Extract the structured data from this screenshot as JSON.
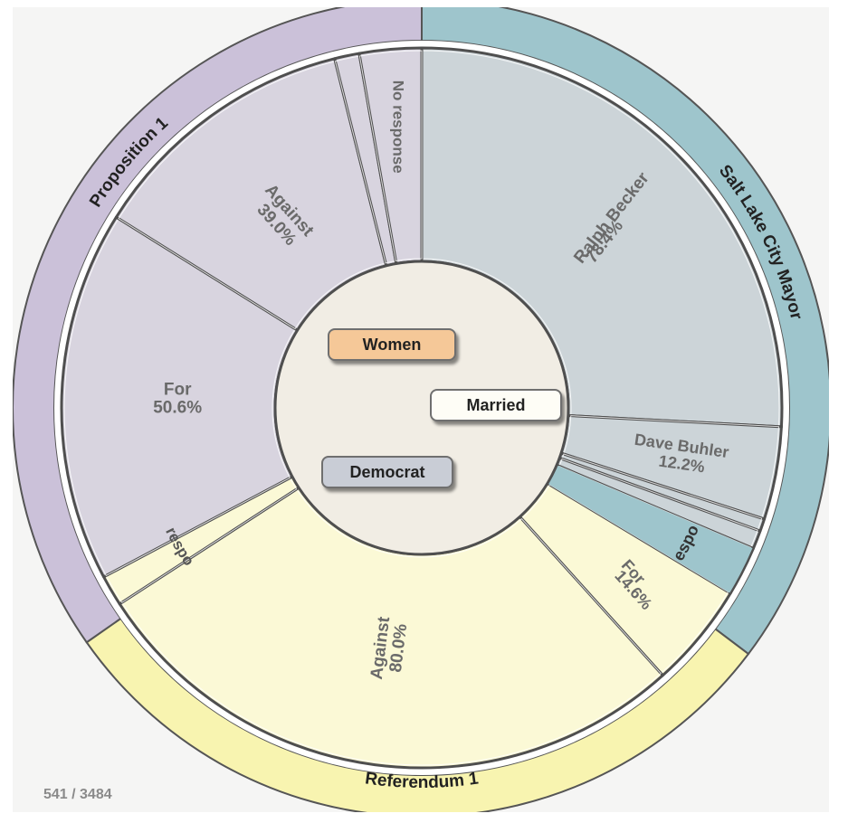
{
  "chart_data": {
    "type": "sunburst",
    "colors": {
      "mayor_outer": "#9ec5cc",
      "mayor_inner": "#ccd4d8",
      "prop_outer": "#cbc1d9",
      "prop_inner": "#d8d4df",
      "ref_outer": "#f8f4b0",
      "ref_inner": "#fbf9d6",
      "center": "#f1ede4"
    },
    "outer_ring": [
      {
        "id": "mayor",
        "label": "Salt Lake City Mayor",
        "start": 0,
        "end": 127
      },
      {
        "id": "ref",
        "label": "Referendum 1",
        "start": 127,
        "end": 235
      },
      {
        "id": "prop",
        "label": "Proposition 1",
        "start": 235,
        "end": 360
      }
    ],
    "inner_ring": [
      {
        "id": "ralph-becker",
        "group": "mayor",
        "start": 0,
        "end": 93,
        "label": "Ralph Becker",
        "value": "78.4%",
        "show_value": true
      },
      {
        "id": "dave-buhler",
        "group": "mayor",
        "start": 93,
        "end": 108,
        "label": "Dave Buhler",
        "value": "12.2%",
        "show_value": true
      },
      {
        "id": "mayor-thin-1",
        "group": "mayor",
        "start": 108,
        "end": 110,
        "label": "",
        "value": "",
        "show_value": false
      },
      {
        "id": "mayor-thin-2",
        "group": "mayor",
        "start": 110,
        "end": 113,
        "label": "",
        "value": "",
        "show_value": false
      },
      {
        "id": "mayor-no-response",
        "group": "mayor",
        "start": 113,
        "end": 121,
        "label": "No response",
        "value": "",
        "show_value": false
      },
      {
        "id": "ref-for",
        "group": "ref",
        "start": 121,
        "end": 138,
        "label": "For",
        "value": "14.6%",
        "show_value": true
      },
      {
        "id": "ref-against",
        "group": "ref",
        "start": 138,
        "end": 237,
        "label": "Against",
        "value": "80.0%",
        "show_value": true
      },
      {
        "id": "ref-no-response",
        "group": "ref",
        "start": 237,
        "end": 242,
        "label": "No response",
        "value": "",
        "show_value": false
      },
      {
        "id": "prop-for",
        "group": "prop",
        "start": 242,
        "end": 302,
        "label": "For",
        "value": "50.6%",
        "show_value": true
      },
      {
        "id": "prop-against",
        "group": "prop",
        "start": 302,
        "end": 346,
        "label": "Against",
        "value": "39.0%",
        "show_value": true
      },
      {
        "id": "prop-thin",
        "group": "prop",
        "start": 346,
        "end": 350,
        "label": "",
        "value": "",
        "show_value": false
      },
      {
        "id": "prop-no-response",
        "group": "prop",
        "start": 350,
        "end": 360,
        "label": "No response",
        "value": "",
        "show_value": false
      }
    ],
    "filters": [
      {
        "id": "women",
        "label": "Women",
        "color": "#f5c898"
      },
      {
        "id": "married",
        "label": "Married",
        "color": "#fefdf6"
      },
      {
        "id": "democrat",
        "label": "Democrat",
        "color": "#c9cdd6"
      }
    ]
  },
  "footer": {
    "counter": "541 / 3484"
  }
}
